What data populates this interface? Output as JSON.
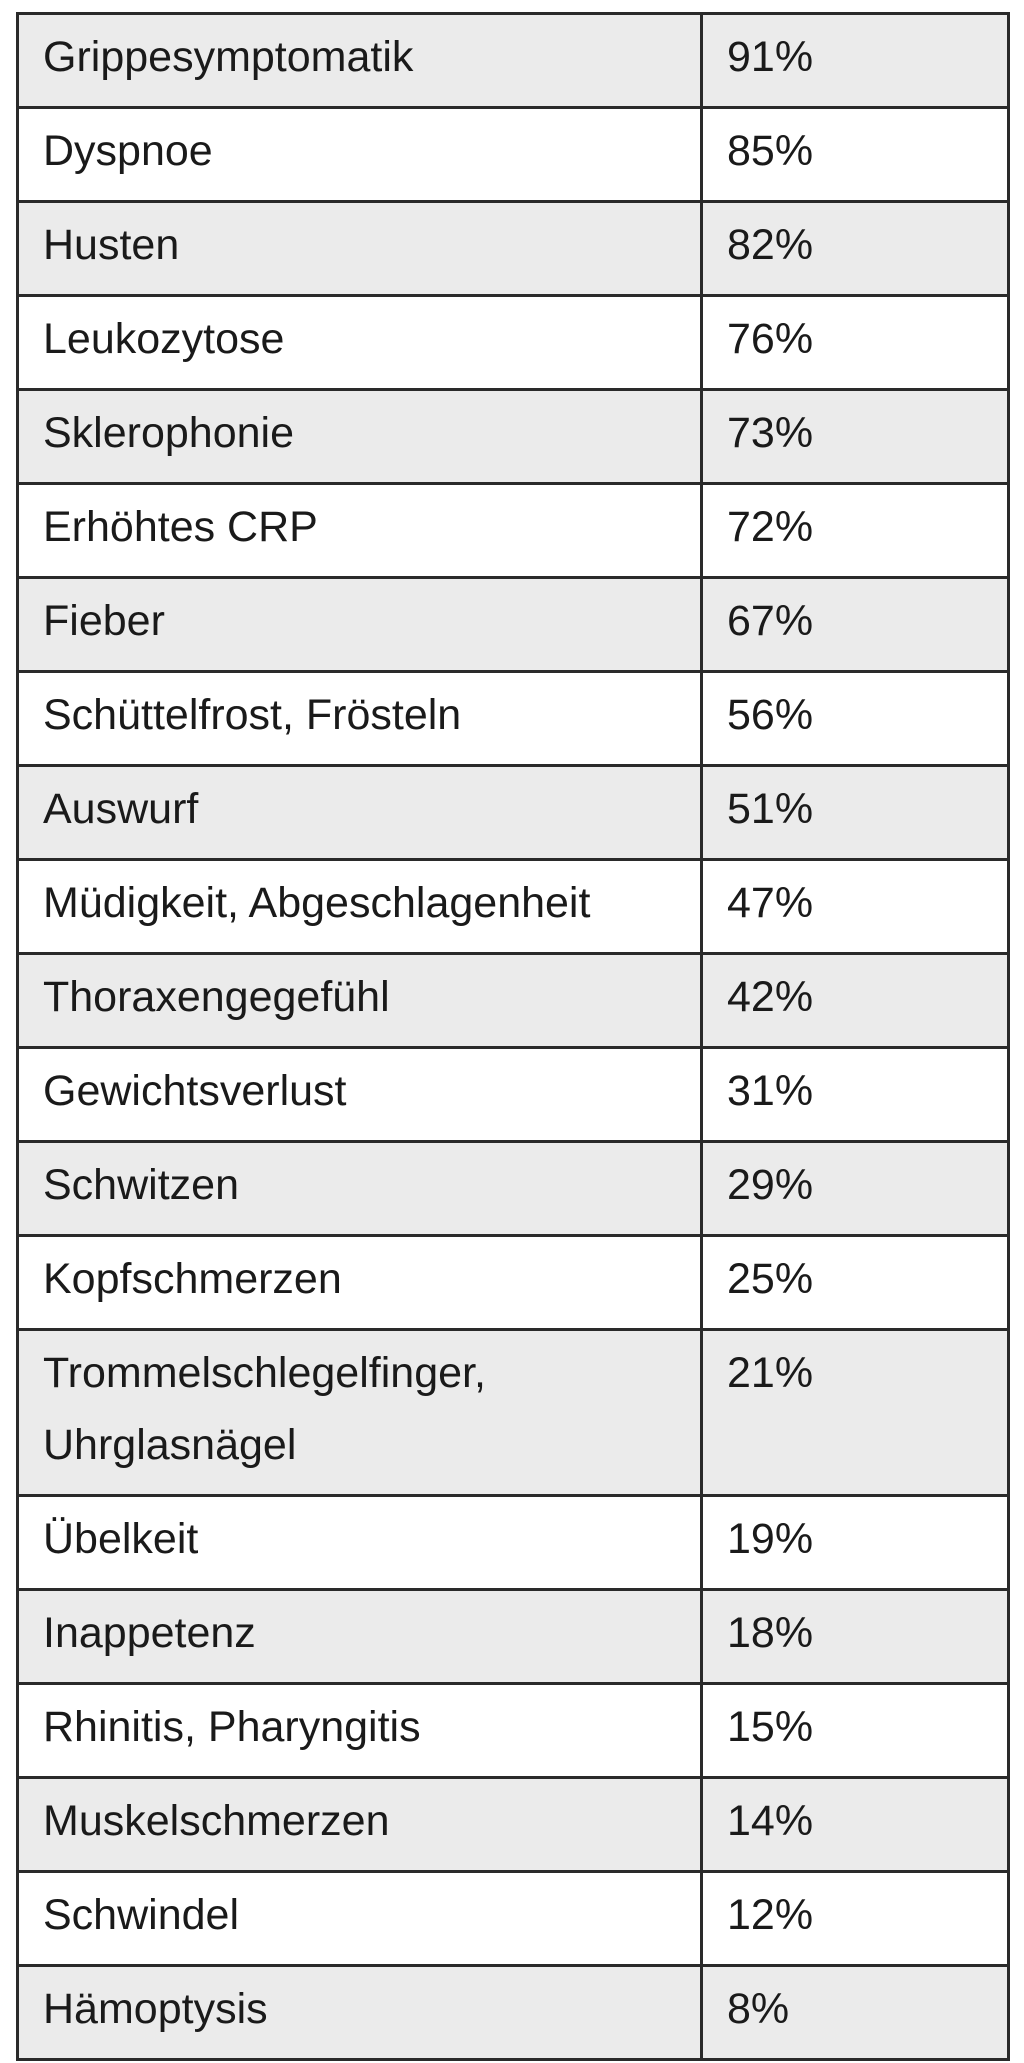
{
  "table": {
    "rows": [
      {
        "symptom": "Grippesymptomatik",
        "percent": "91%"
      },
      {
        "symptom": "Dyspnoe",
        "percent": "85%"
      },
      {
        "symptom": "Husten",
        "percent": "82%"
      },
      {
        "symptom": "Leukozytose",
        "percent": "76%"
      },
      {
        "symptom": "Sklerophonie",
        "percent": "73%"
      },
      {
        "symptom": "Erhöhtes CRP",
        "percent": "72%"
      },
      {
        "symptom": "Fieber",
        "percent": "67%"
      },
      {
        "symptom": "Schüttelfrost, Frösteln",
        "percent": "56%"
      },
      {
        "symptom": "Auswurf",
        "percent": "51%"
      },
      {
        "symptom": "Müdigkeit, Abgeschlagenheit",
        "percent": "47%"
      },
      {
        "symptom": "Thoraxengegefühl",
        "percent": "42%"
      },
      {
        "symptom": "Gewichtsverlust",
        "percent": "31%"
      },
      {
        "symptom": "Schwitzen",
        "percent": "29%"
      },
      {
        "symptom": "Kopfschmerzen",
        "percent": "25%"
      },
      {
        "symptom": "Trommelschlegelfinger, Uhrglasnägel",
        "percent": "21%"
      },
      {
        "symptom": "Übelkeit",
        "percent": "19%"
      },
      {
        "symptom": "Inappetenz",
        "percent": "18%"
      },
      {
        "symptom": "Rhinitis, Pharyngitis",
        "percent": "15%"
      },
      {
        "symptom": "Muskelschmerzen",
        "percent": "14%"
      },
      {
        "symptom": "Schwindel",
        "percent": "12%"
      },
      {
        "symptom": "Hämoptysis",
        "percent": "8%"
      }
    ]
  }
}
